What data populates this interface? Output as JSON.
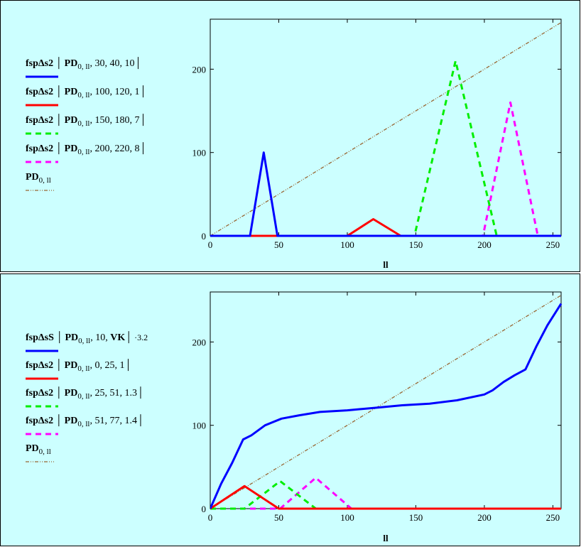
{
  "chart_data": [
    {
      "type": "line",
      "xlabel": "ll",
      "ylabel": "",
      "xlim": [
        0,
        256
      ],
      "ylim": [
        0,
        260
      ],
      "xticks": [
        0,
        50,
        100,
        150,
        200,
        250
      ],
      "yticks": [
        0,
        100,
        200
      ],
      "grid": false,
      "legend_position": "left",
      "series": [
        {
          "legend": {
            "fn": "fspΔs2",
            "arg1": "PD",
            "sub": "0, ll",
            "rest": ", 30, 40, 10"
          },
          "color": "#0000ff",
          "dash": "solid",
          "x": [
            0,
            29,
            39,
            49,
            256
          ],
          "y": [
            0,
            0,
            100,
            0,
            0
          ]
        },
        {
          "legend": {
            "fn": "fspΔs2",
            "arg1": "PD",
            "sub": "0, ll",
            "rest": ", 100, 120, 1"
          },
          "color": "#ff0000",
          "dash": "solid",
          "x": [
            0,
            100,
            119,
            139,
            256
          ],
          "y": [
            0,
            0,
            20,
            0,
            0
          ]
        },
        {
          "legend": {
            "fn": "fspΔs2",
            "arg1": "PD",
            "sub": "0, ll",
            "rest": ", 150, 180, 7"
          },
          "color": "#00ee00",
          "dash": "dashed",
          "x": [
            0,
            149,
            179,
            209,
            256
          ],
          "y": [
            0,
            0,
            210,
            0,
            0
          ]
        },
        {
          "legend": {
            "fn": "fspΔs2",
            "arg1": "PD",
            "sub": "0, ll",
            "rest": ", 200, 220, 8"
          },
          "color": "#ff00ff",
          "dash": "dashed",
          "x": [
            0,
            199,
            219,
            239,
            256
          ],
          "y": [
            0,
            0,
            160,
            0,
            0
          ]
        },
        {
          "legend": {
            "fn": "",
            "arg1": "PD",
            "sub": "0, ll",
            "rest": ""
          },
          "color": "#996633",
          "dash": "dashdot",
          "x": [
            0,
            256
          ],
          "y": [
            0,
            256
          ]
        }
      ]
    },
    {
      "type": "line",
      "xlabel": "ll",
      "ylabel": "",
      "xlim": [
        0,
        256
      ],
      "ylim": [
        0,
        260
      ],
      "xticks": [
        0,
        50,
        100,
        150,
        200,
        250
      ],
      "yticks": [
        0,
        100,
        200
      ],
      "grid": false,
      "legend_position": "left",
      "series": [
        {
          "legend": {
            "fn": "fspΔsS",
            "arg1": "PD",
            "sub": "0, ll",
            "rest": ", 10, ",
            "extra_bold": "VK",
            "tail": " ·3.2"
          },
          "color": "#0000ff",
          "dash": "solid",
          "x": [
            0,
            8,
            16,
            24,
            30,
            40,
            52,
            65,
            80,
            100,
            120,
            140,
            160,
            180,
            200,
            206,
            214,
            222,
            230,
            238,
            246,
            256
          ],
          "y": [
            0,
            30,
            55,
            83,
            88,
            100,
            108,
            112,
            116,
            118,
            121,
            124,
            126,
            130,
            137,
            142,
            152,
            160,
            167,
            195,
            220,
            246
          ]
        },
        {
          "legend": {
            "fn": "fspΔs2",
            "arg1": "PD",
            "sub": "0, ll",
            "rest": ", 0, 25, 1"
          },
          "color": "#ff0000",
          "dash": "solid",
          "x": [
            0,
            25,
            50,
            256
          ],
          "y": [
            0,
            27,
            0,
            0
          ]
        },
        {
          "legend": {
            "fn": "fspΔs2",
            "arg1": "PD",
            "sub": "0, ll",
            "rest": ", 25, 51, 1.3"
          },
          "color": "#00ee00",
          "dash": "dashed",
          "x": [
            0,
            25,
            51,
            77,
            256
          ],
          "y": [
            0,
            0,
            33,
            0,
            0
          ]
        },
        {
          "legend": {
            "fn": "fspΔs2",
            "arg1": "PD",
            "sub": "0, ll",
            "rest": ", 51, 77, 1.4"
          },
          "color": "#ff00ff",
          "dash": "dashed",
          "x": [
            0,
            51,
            77,
            103,
            256
          ],
          "y": [
            0,
            0,
            37,
            0,
            0
          ]
        },
        {
          "legend": {
            "fn": "",
            "arg1": "PD",
            "sub": "0, ll",
            "rest": ""
          },
          "color": "#996633",
          "dash": "dashdot",
          "x": [
            0,
            256
          ],
          "y": [
            0,
            256
          ]
        }
      ]
    }
  ]
}
